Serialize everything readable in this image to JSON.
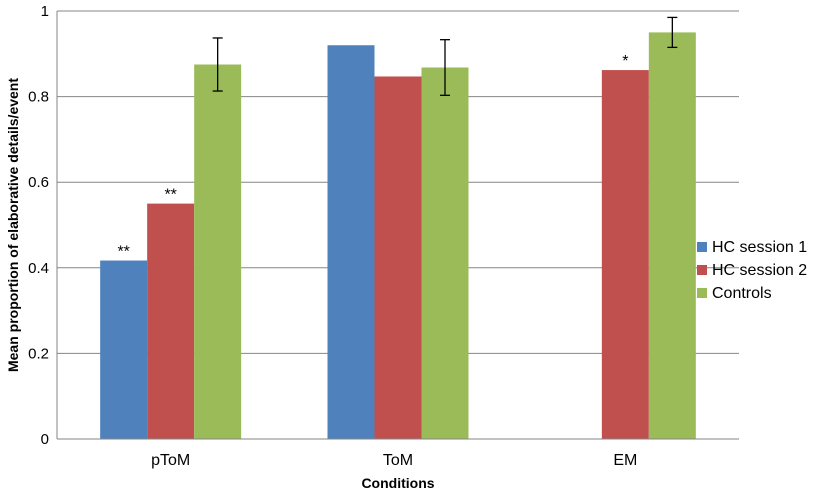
{
  "chart_data": {
    "type": "bar",
    "categories": [
      "pToM",
      "ToM",
      "EM"
    ],
    "series": [
      {
        "name": "HC session 1",
        "color": "#4F81BD",
        "values": [
          0.417,
          0.92,
          null
        ],
        "errors": [
          null,
          null,
          null
        ],
        "annotations": [
          "**",
          "",
          ""
        ]
      },
      {
        "name": "HC session 2",
        "color": "#C0504D",
        "values": [
          0.55,
          0.847,
          0.862
        ],
        "errors": [
          null,
          null,
          null
        ],
        "annotations": [
          "**",
          "",
          "*"
        ]
      },
      {
        "name": "Controls",
        "color": "#9BBB59",
        "values": [
          0.875,
          0.868,
          0.95
        ],
        "errors": [
          0.062,
          0.065,
          0.035
        ],
        "annotations": [
          "",
          "",
          ""
        ]
      }
    ],
    "xlabel": "Conditions",
    "ylabel": "Mean proportion of elaborative details/event",
    "ylim": [
      0,
      1
    ],
    "yticks": [
      "0",
      "0.2",
      "0.4",
      "0.6",
      "0.8",
      "1"
    ],
    "grid": true,
    "legend": "right"
  }
}
